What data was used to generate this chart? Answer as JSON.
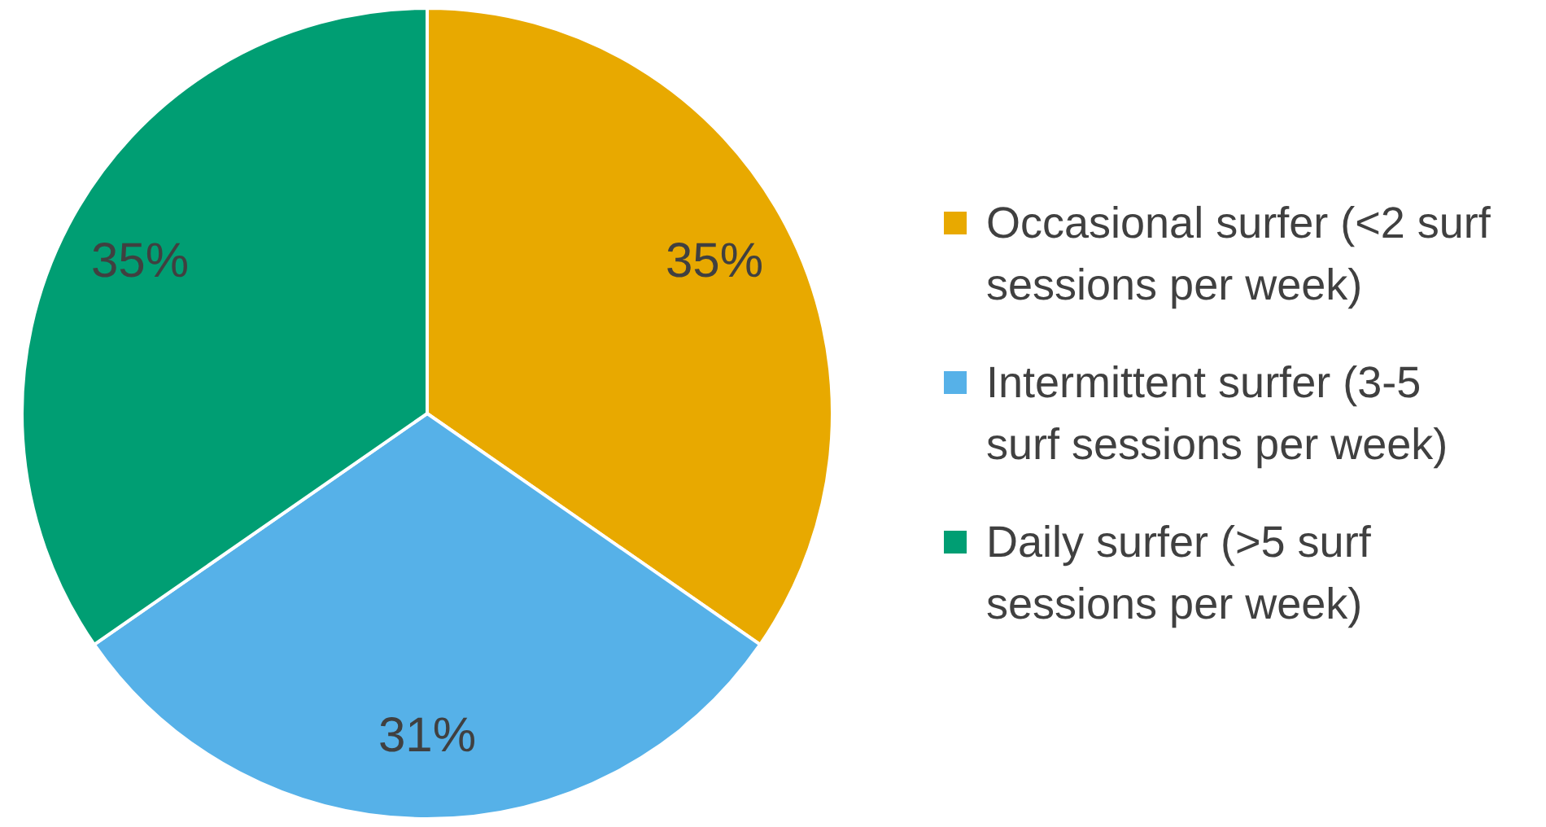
{
  "chart_data": {
    "type": "pie",
    "categories": [
      "Occasional surfer (<2 surf sessions per week)",
      "Intermittent surfer (3-5 surf sessions per week)",
      "Daily surfer (>5 surf sessions per week)"
    ],
    "values": [
      35,
      31,
      35
    ],
    "colors": [
      "#e8a900",
      "#56b1e8",
      "#009e73"
    ],
    "value_labels": [
      "35%",
      "31%",
      "35%"
    ],
    "legend": "right"
  }
}
